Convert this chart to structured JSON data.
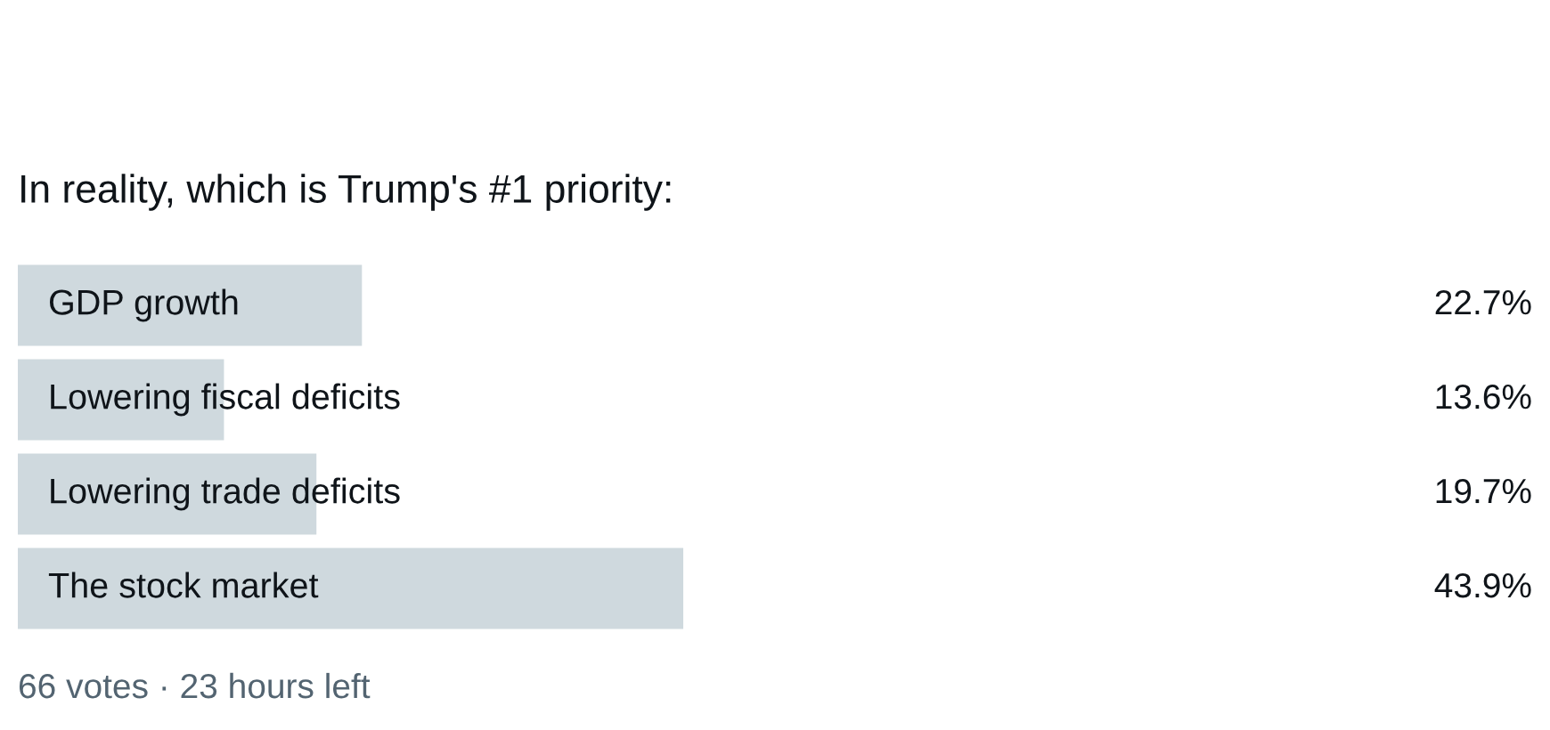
{
  "chart_data": {
    "type": "bar",
    "orientation": "horizontal",
    "title": "In reality, which is Trump's #1 priority:",
    "categories": [
      "GDP growth",
      "Lowering fiscal deficits",
      "Lowering trade deficits",
      "The stock market"
    ],
    "values": [
      22.7,
      13.6,
      19.7,
      43.9
    ],
    "value_labels": [
      "22.7%",
      "13.6%",
      "19.7%",
      "43.9%"
    ],
    "color": "#cfd9de",
    "annotations": [
      "66 votes · 23 hours left"
    ]
  }
}
